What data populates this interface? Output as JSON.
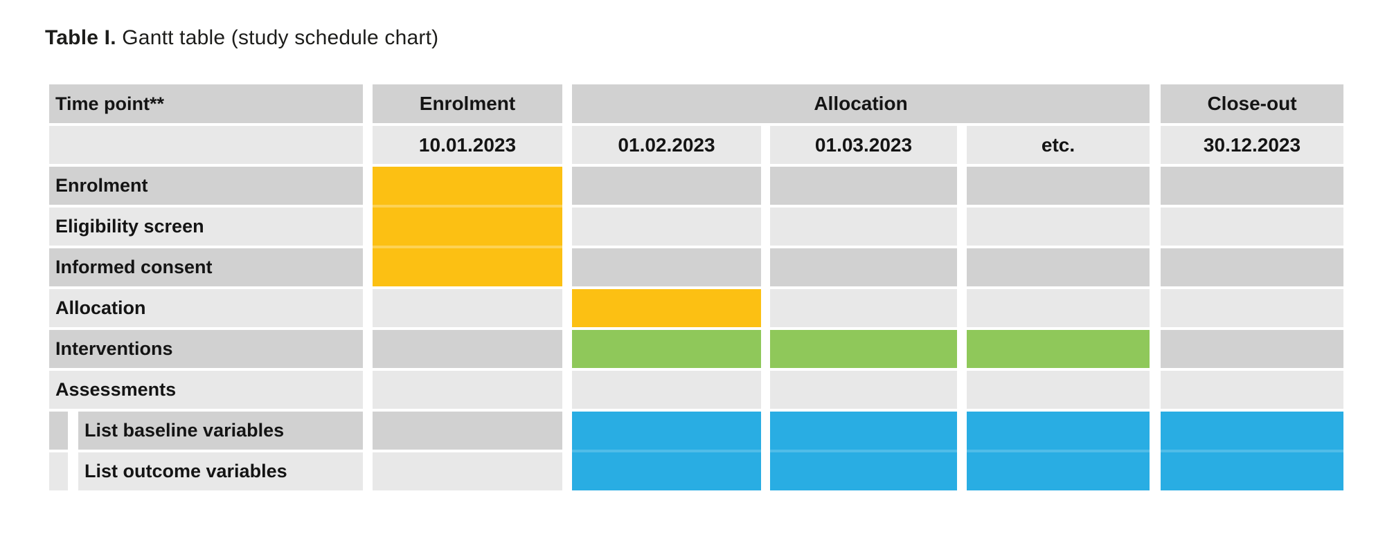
{
  "title": {
    "prefix": "Table I.",
    "rest": " Gantt table (study schedule chart)"
  },
  "colors": {
    "yellow": "#fcc013",
    "green": "#8fc85a",
    "blue": "#29ade3",
    "gray_dark": "#d1d1d1",
    "gray_light": "#e8e8e8"
  },
  "table": {
    "corner_label": "Time point**",
    "groups": [
      {
        "label": "Enrolment",
        "span": 1
      },
      {
        "label": "Allocation",
        "span": 3
      },
      {
        "label": "Close-out",
        "span": 1
      }
    ],
    "dates": [
      "10.01.2023",
      "01.02.2023",
      "01.03.2023",
      "etc.",
      "30.12.2023"
    ],
    "rows": [
      {
        "label": "Enrolment",
        "indent": false
      },
      {
        "label": "Eligibility screen",
        "indent": false
      },
      {
        "label": "Informed consent",
        "indent": false
      },
      {
        "label": "Allocation",
        "indent": false
      },
      {
        "label": "Interventions",
        "indent": false
      },
      {
        "label": "Assessments",
        "indent": false
      },
      {
        "label": "List baseline variables",
        "indent": true
      },
      {
        "label": "List outcome variables",
        "indent": true
      }
    ]
  },
  "chart_data": {
    "type": "table",
    "subtype": "gantt",
    "title": "Table I. Gantt table (study schedule chart)",
    "time_point_header": "Time point**",
    "phases": [
      {
        "name": "Enrolment",
        "time_points": [
          "10.01.2023"
        ]
      },
      {
        "name": "Allocation",
        "time_points": [
          "01.02.2023",
          "01.03.2023",
          "etc."
        ]
      },
      {
        "name": "Close-out",
        "time_points": [
          "30.12.2023"
        ]
      }
    ],
    "columns": [
      "10.01.2023",
      "01.02.2023",
      "01.03.2023",
      "etc.",
      "30.12.2023"
    ],
    "activities": [
      {
        "label": "Enrolment",
        "marked_columns": [
          "10.01.2023"
        ],
        "bar_color": "#fcc013"
      },
      {
        "label": "Eligibility screen",
        "marked_columns": [
          "10.01.2023"
        ],
        "bar_color": "#fcc013"
      },
      {
        "label": "Informed consent",
        "marked_columns": [
          "10.01.2023"
        ],
        "bar_color": "#fcc013"
      },
      {
        "label": "Allocation",
        "marked_columns": [
          "01.02.2023"
        ],
        "bar_color": "#fcc013"
      },
      {
        "label": "Interventions",
        "marked_columns": [
          "01.02.2023",
          "01.03.2023",
          "etc."
        ],
        "bar_color": "#8fc85a"
      },
      {
        "label": "Assessments",
        "marked_columns": [],
        "bar_color": null
      },
      {
        "label": "List baseline variables",
        "indent": true,
        "marked_columns": [
          "01.02.2023",
          "01.03.2023",
          "etc.",
          "30.12.2023"
        ],
        "bar_color": "#29ade3"
      },
      {
        "label": "List outcome variables",
        "indent": true,
        "marked_columns": [
          "01.02.2023",
          "01.03.2023",
          "etc.",
          "30.12.2023"
        ],
        "bar_color": "#29ade3"
      }
    ],
    "layout": {
      "row_stripe_colors": [
        "#d1d1d1",
        "#e8e8e8"
      ],
      "grid": "white gaps between rows and columns"
    }
  }
}
